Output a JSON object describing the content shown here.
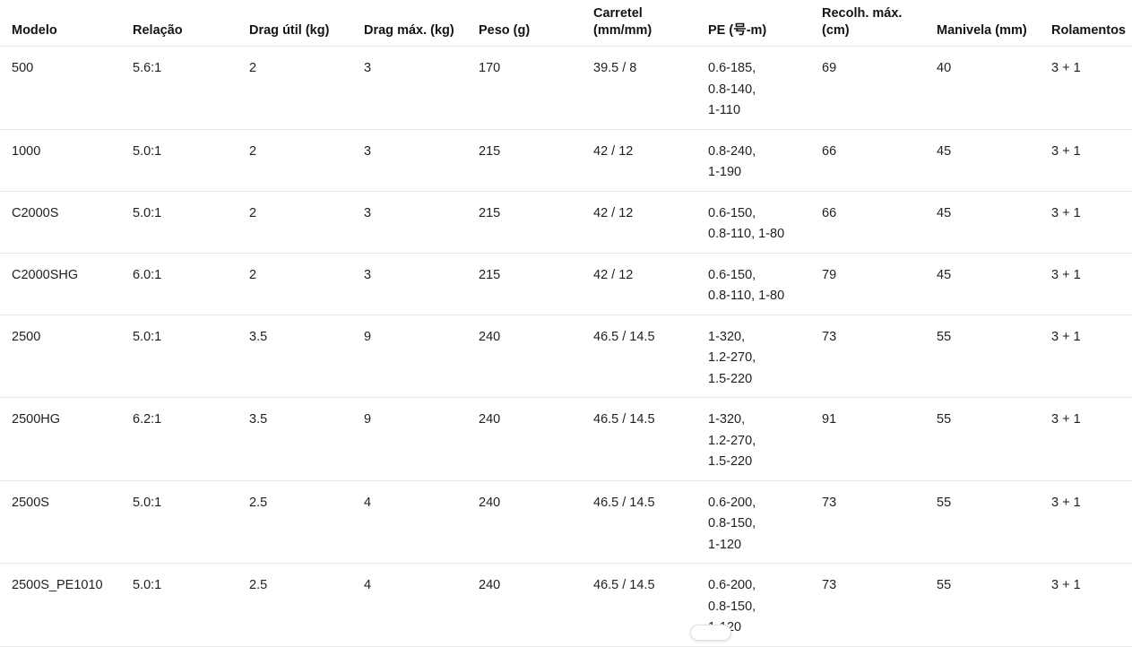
{
  "colors": {
    "text": "#1f1f1f",
    "header_text": "#141414",
    "divider": "#e7e7e7",
    "background": "#ffffff"
  },
  "table": {
    "columns": [
      {
        "key": "modelo",
        "label": "Modelo"
      },
      {
        "key": "relacao",
        "label": "Relação"
      },
      {
        "key": "drag_util",
        "label": "Drag útil (kg)"
      },
      {
        "key": "drag_max",
        "label": "Drag máx. (kg)"
      },
      {
        "key": "peso",
        "label": "Peso (g)"
      },
      {
        "key": "carretel",
        "label": "Carretel (mm/mm)"
      },
      {
        "key": "pe",
        "label": "PE (号-m)"
      },
      {
        "key": "recolh_max",
        "label": "Recolh. máx. (cm)"
      },
      {
        "key": "manivela",
        "label": "Manivela (mm)"
      },
      {
        "key": "rolamentos",
        "label": "Rolamentos"
      }
    ],
    "rows": [
      {
        "modelo": "500",
        "relacao": "5.6:1",
        "drag_util": "2",
        "drag_max": "3",
        "peso": "170",
        "carretel": "39.5 / 8",
        "pe": "0.6-185,\n0.8-140,\n1-110",
        "recolh_max": "69",
        "manivela": "40",
        "rolamentos": "3 + 1"
      },
      {
        "modelo": "1000",
        "relacao": "5.0:1",
        "drag_util": "2",
        "drag_max": "3",
        "peso": "215",
        "carretel": "42 / 12",
        "pe": "0.8-240,\n1-190",
        "recolh_max": "66",
        "manivela": "45",
        "rolamentos": "3 + 1"
      },
      {
        "modelo": "C2000S",
        "relacao": "5.0:1",
        "drag_util": "2",
        "drag_max": "3",
        "peso": "215",
        "carretel": "42 / 12",
        "pe": "0.6-150,\n0.8-110, 1-80",
        "recolh_max": "66",
        "manivela": "45",
        "rolamentos": "3 + 1"
      },
      {
        "modelo": "C2000SHG",
        "relacao": "6.0:1",
        "drag_util": "2",
        "drag_max": "3",
        "peso": "215",
        "carretel": "42 / 12",
        "pe": "0.6-150,\n0.8-110, 1-80",
        "recolh_max": "79",
        "manivela": "45",
        "rolamentos": "3 + 1"
      },
      {
        "modelo": "2500",
        "relacao": "5.0:1",
        "drag_util": "3.5",
        "drag_max": "9",
        "peso": "240",
        "carretel": "46.5 / 14.5",
        "pe": "1-320,\n1.2-270,\n1.5-220",
        "recolh_max": "73",
        "manivela": "55",
        "rolamentos": "3 + 1"
      },
      {
        "modelo": "2500HG",
        "relacao": "6.2:1",
        "drag_util": "3.5",
        "drag_max": "9",
        "peso": "240",
        "carretel": "46.5 / 14.5",
        "pe": "1-320,\n1.2-270,\n1.5-220",
        "recolh_max": "91",
        "manivela": "55",
        "rolamentos": "3 + 1"
      },
      {
        "modelo": "2500S",
        "relacao": "5.0:1",
        "drag_util": "2.5",
        "drag_max": "4",
        "peso": "240",
        "carretel": "46.5 / 14.5",
        "pe": "0.6-200,\n0.8-150,\n1-120",
        "recolh_max": "73",
        "manivela": "55",
        "rolamentos": "3 + 1"
      },
      {
        "modelo": "2500S_PE1010",
        "relacao": "5.0:1",
        "drag_util": "2.5",
        "drag_max": "4",
        "peso": "240",
        "carretel": "46.5 / 14.5",
        "pe": "0.6-200,\n0.8-150,\n1-120",
        "recolh_max": "73",
        "manivela": "55",
        "rolamentos": "3 + 1"
      }
    ]
  }
}
